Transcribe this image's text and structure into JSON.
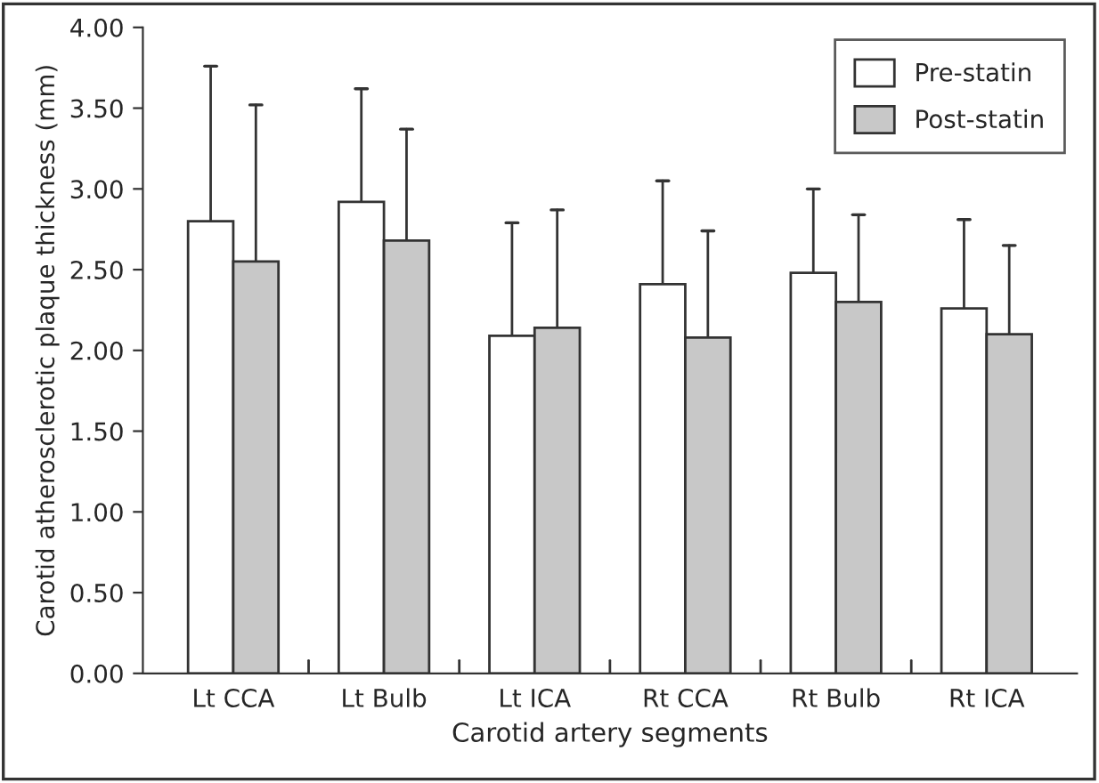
{
  "chart_data": {
    "type": "bar",
    "xlabel": "Carotid artery segments",
    "ylabel": "Carotid atherosclerotic plaque thickness (mm)",
    "categories": [
      "Lt CCA",
      "Lt Bulb",
      "Lt ICA",
      "Rt CCA",
      "Rt Bulb",
      "Rt ICA"
    ],
    "series": [
      {
        "name": "Pre-statin",
        "color": "#ffffff",
        "values": [
          2.8,
          2.92,
          2.09,
          2.41,
          2.48,
          2.26
        ],
        "errors": [
          [
            2.8,
            3.76
          ],
          [
            2.92,
            3.62
          ],
          [
            2.09,
            2.79
          ],
          [
            2.41,
            3.05
          ],
          [
            2.48,
            3.0
          ],
          [
            2.26,
            2.81
          ]
        ]
      },
      {
        "name": "Post-statin",
        "color": "#c8c8c8",
        "values": [
          2.55,
          2.68,
          2.14,
          2.08,
          2.3,
          2.1
        ],
        "errors": [
          [
            2.55,
            3.52
          ],
          [
            2.68,
            3.37
          ],
          [
            2.14,
            2.87
          ],
          [
            2.08,
            2.74
          ],
          [
            2.3,
            2.84
          ],
          [
            2.1,
            2.65
          ]
        ]
      }
    ],
    "ylim": [
      0,
      4
    ],
    "yticks": [
      {
        "value": 0,
        "label": "0.00"
      },
      {
        "value": 0.5,
        "label": "0.50"
      },
      {
        "value": 1,
        "label": "1.00"
      },
      {
        "value": 1.5,
        "label": "1.50"
      },
      {
        "value": 2,
        "label": "2.00"
      },
      {
        "value": 2.5,
        "label": "2.50"
      },
      {
        "value": 3,
        "label": "3.00"
      },
      {
        "value": 3.5,
        "label": "3.50"
      },
      {
        "value": 4,
        "label": "4.00"
      }
    ],
    "grid": false,
    "legend": "top right"
  }
}
